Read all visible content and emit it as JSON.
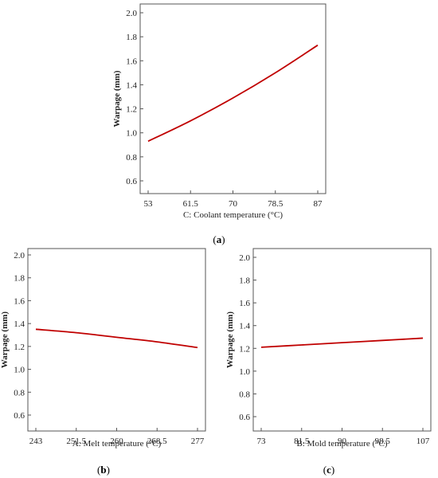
{
  "chart_data": [
    {
      "panel": "(a)",
      "type": "line",
      "xlabel": "C: Coolant temperature (°C)",
      "ylabel": "Warpage (mm)",
      "xticks": [
        "53",
        "61.5",
        "70",
        "78.5",
        "87"
      ],
      "xlim": [
        53,
        87
      ],
      "yticks": [
        "0.6",
        "0.8",
        "1.0",
        "1.2",
        "1.4",
        "1.6",
        "1.8",
        "2.0"
      ],
      "ylim": [
        0.5,
        2.0
      ],
      "series": [
        {
          "color": "#c00000",
          "x": [
            53,
            61.5,
            70,
            78.5,
            87
          ],
          "y": [
            0.93,
            1.1,
            1.29,
            1.5,
            1.73
          ]
        }
      ]
    },
    {
      "panel": "(b)",
      "type": "line",
      "xlabel": "A: Melt temperature (°C)",
      "ylabel": "Warpage (mm)",
      "xticks": [
        "243",
        "251.5",
        "260",
        "268.5",
        "277"
      ],
      "xlim": [
        243,
        277
      ],
      "yticks": [
        "0.6",
        "0.8",
        "1.0",
        "1.2",
        "1.4",
        "1.6",
        "1.8",
        "2.0"
      ],
      "ylim": [
        0.5,
        2.0
      ],
      "series": [
        {
          "color": "#c00000",
          "x": [
            243,
            251.5,
            260,
            268.5,
            277
          ],
          "y": [
            1.35,
            1.32,
            1.28,
            1.24,
            1.19
          ]
        }
      ]
    },
    {
      "panel": "(c)",
      "type": "line",
      "xlabel": "B: Mold temperature (°C)",
      "ylabel": "Warpage (mm)",
      "xticks": [
        "73",
        "81.5",
        "90",
        "98.5",
        "107"
      ],
      "xlim": [
        73,
        107
      ],
      "yticks": [
        "0.6",
        "0.8",
        "1.0",
        "1.2",
        "1.4",
        "1.6",
        "1.8",
        "2.0"
      ],
      "ylim": [
        0.5,
        2.0
      ],
      "series": [
        {
          "color": "#c00000",
          "x": [
            73,
            81.5,
            90,
            98.5,
            107
          ],
          "y": [
            1.21,
            1.23,
            1.25,
            1.27,
            1.29
          ]
        }
      ]
    }
  ]
}
